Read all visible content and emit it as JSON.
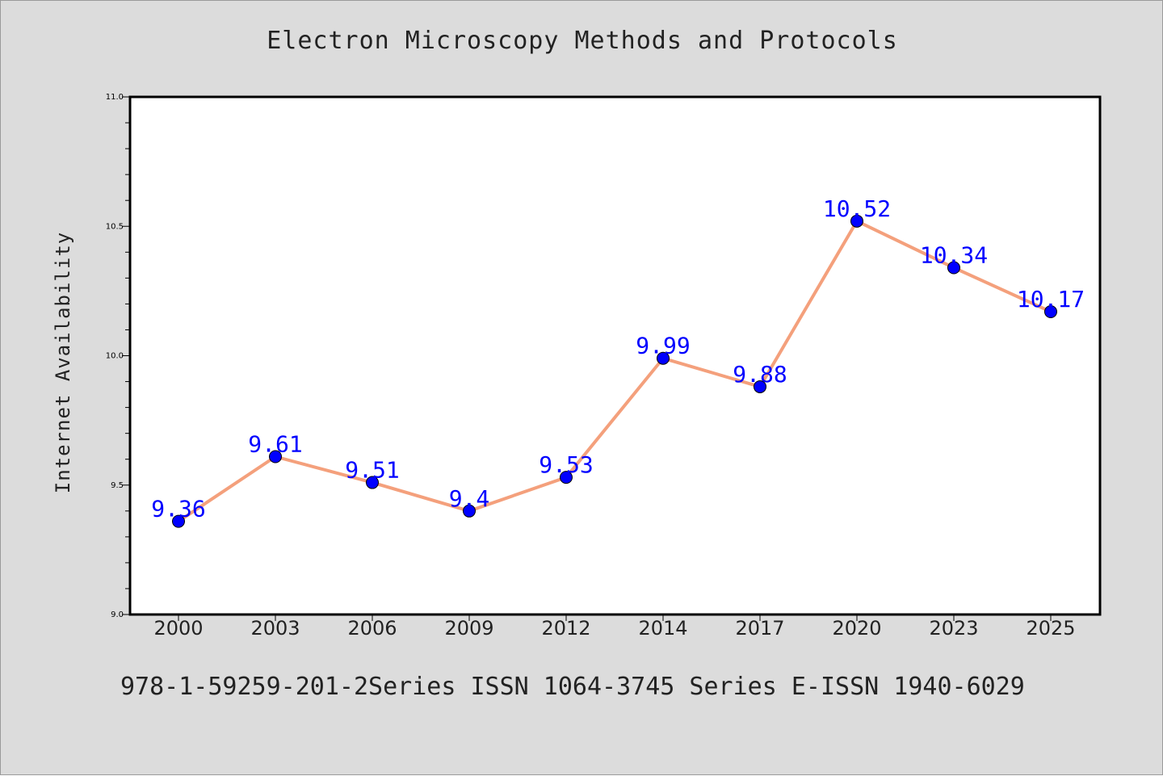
{
  "chart_data": {
    "type": "line",
    "title": "Electron Microscopy Methods and Protocols",
    "xlabel": "",
    "ylabel": "Internet Availability",
    "categories": [
      "2000",
      "2003",
      "2006",
      "2009",
      "2012",
      "2014",
      "2017",
      "2020",
      "2023",
      "2025"
    ],
    "series": [
      {
        "values": [
          9.36,
          9.61,
          9.51,
          9.4,
          9.53,
          9.99,
          9.88,
          10.52,
          10.34,
          10.17
        ]
      }
    ],
    "data_labels": [
      "9.36",
      "9.61",
      "9.51",
      "9.4",
      "9.53",
      "9.99",
      "9.88",
      "10.52",
      "10.34",
      "10.17"
    ],
    "ylim": [
      9.0,
      11.0
    ],
    "yticks": [
      "9.0",
      "9.5",
      "10.0",
      "10.5",
      "11.0"
    ],
    "grid": false,
    "legend": "none",
    "colors": {
      "background": "#dcdcdc",
      "plot_area": "#ffffff",
      "line": "#f4a07c",
      "marker": "#0000ff",
      "data_label": "#0000ff"
    }
  },
  "footer": {
    "text": "978-1-59259-201-2Series ISSN 1064-3745 Series E-ISSN 1940-6029"
  }
}
